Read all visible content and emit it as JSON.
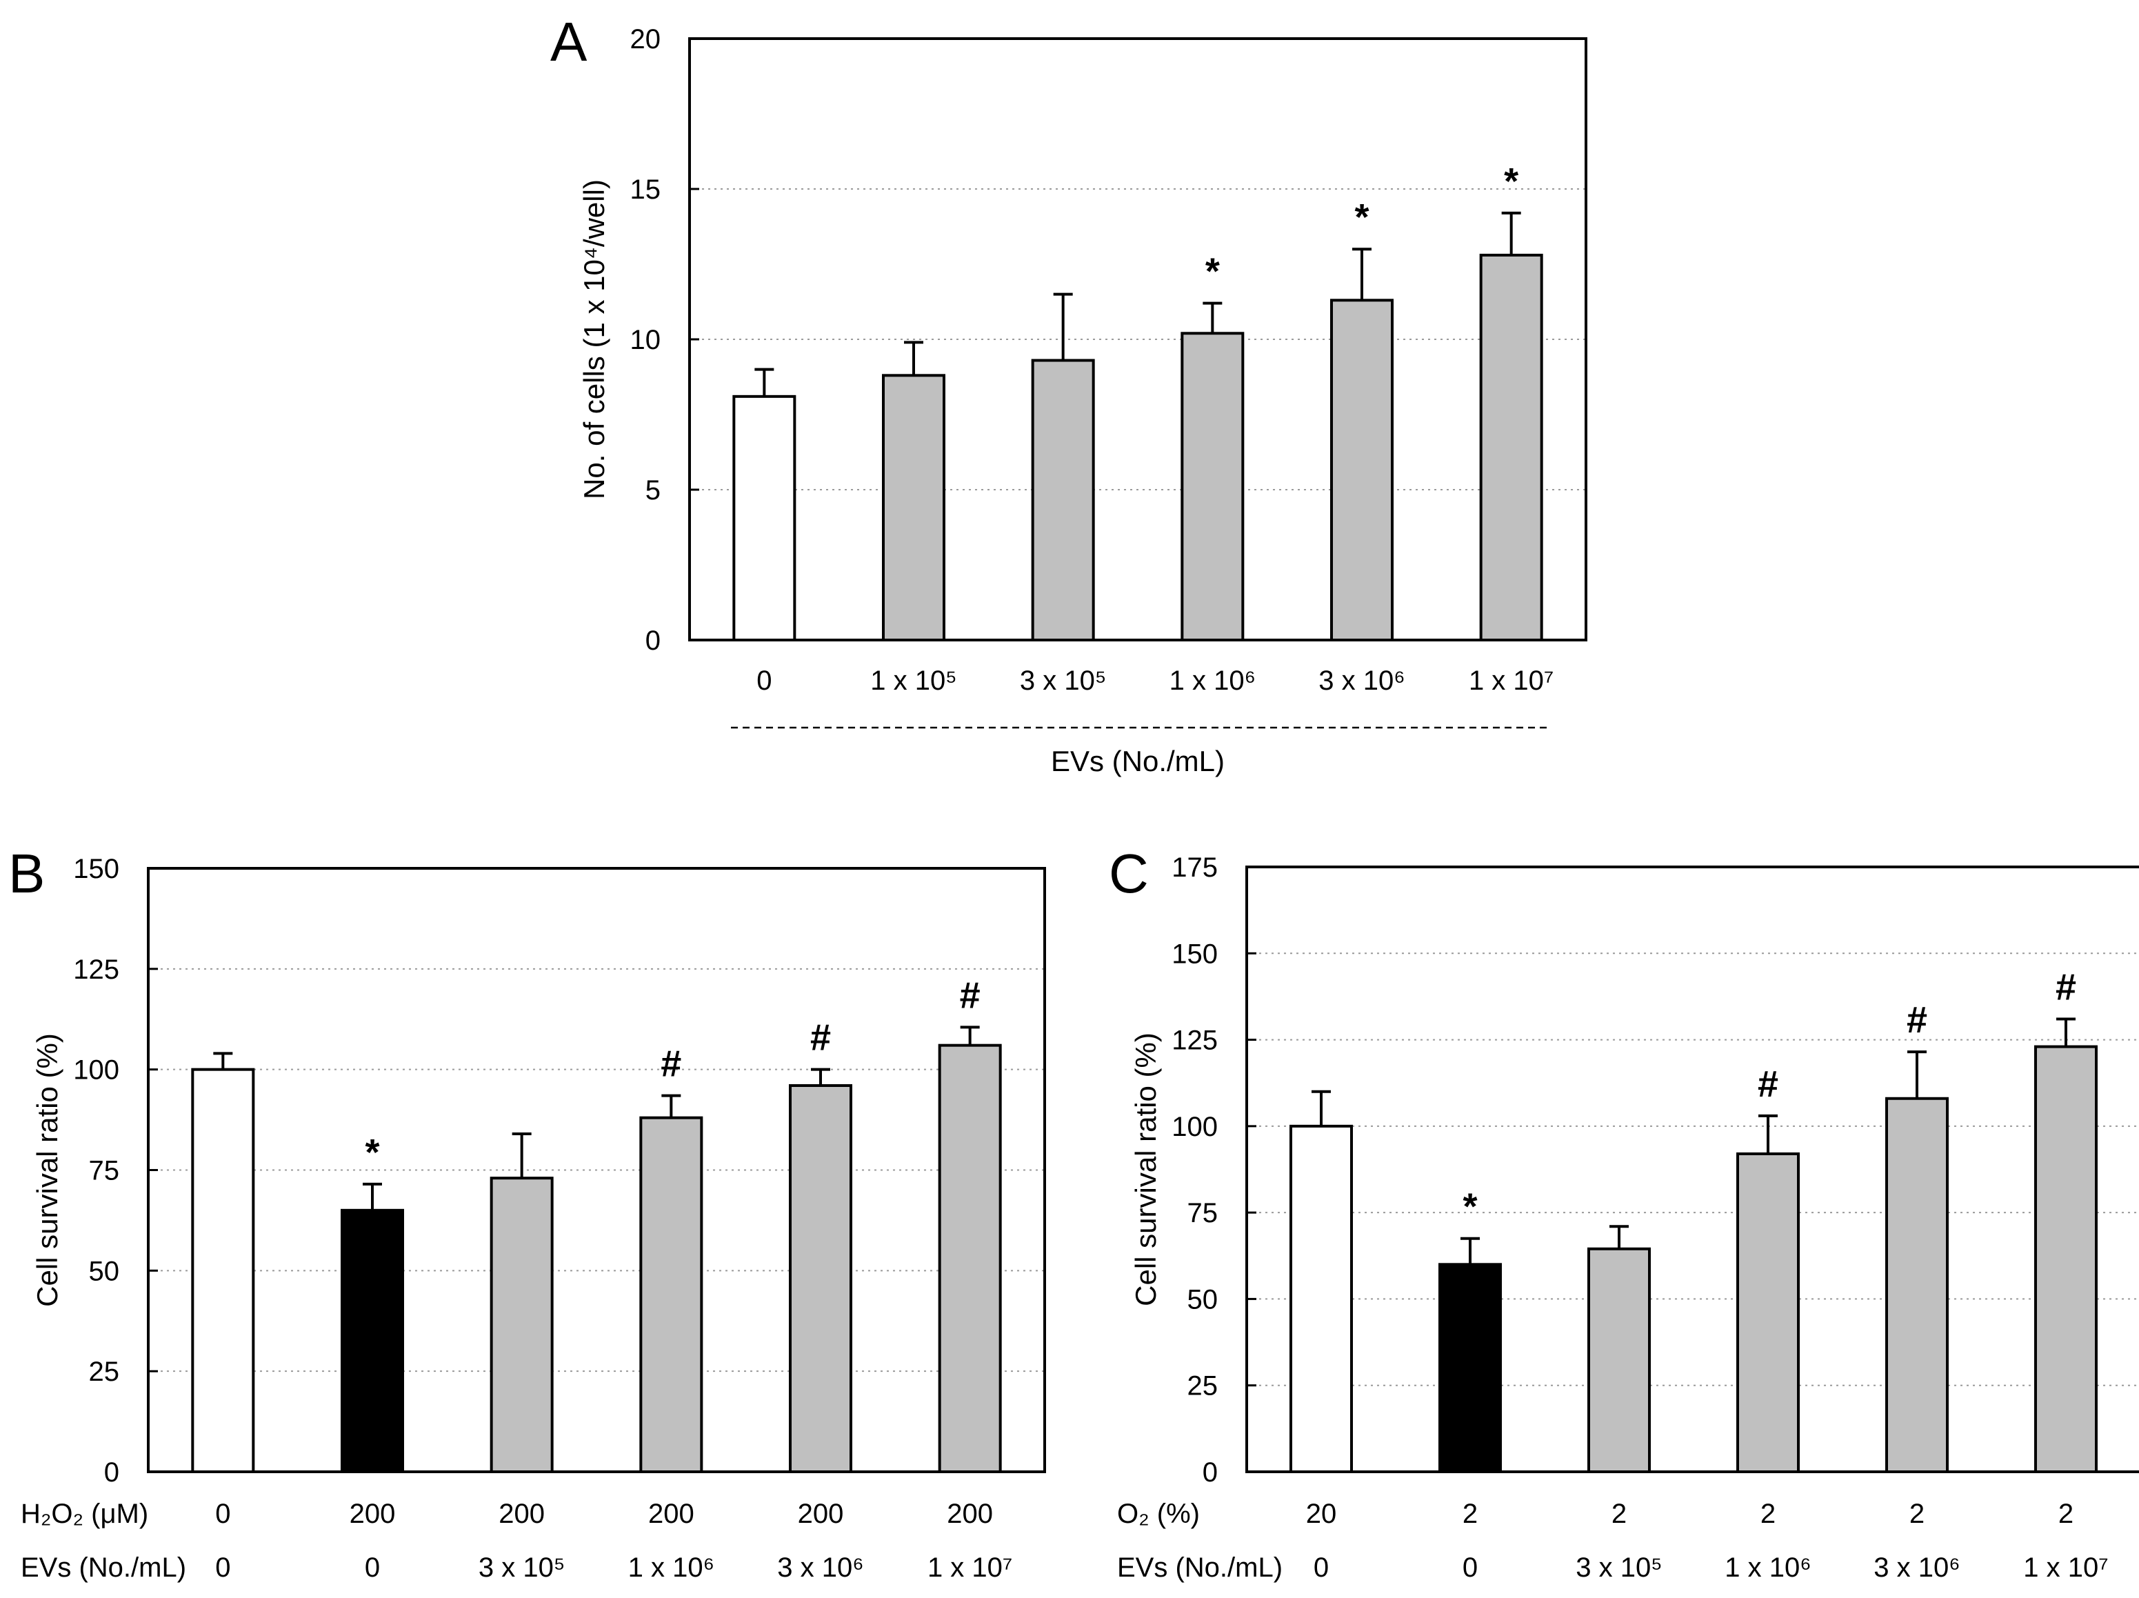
{
  "colors": {
    "control": "#ffffff",
    "stress": "#000000",
    "ev": "#c0c0c0"
  },
  "chart_data": [
    {
      "panel": "A",
      "type": "bar",
      "title": "",
      "ylabel": "No. of cells (1 x 10⁴/well)",
      "xlabel": "EVs (No./mL)",
      "ylim": [
        0,
        20
      ],
      "yticks": [
        0,
        5,
        10,
        15,
        20
      ],
      "grid": true,
      "category_rows": [
        {
          "label": "",
          "values": [
            "0",
            "1 x 10⁵",
            "3 x 10⁵",
            "1 x 10⁶",
            "3 x 10⁶",
            "1 x 10⁷"
          ]
        }
      ],
      "values": [
        8.1,
        8.8,
        9.3,
        10.2,
        11.3,
        12.8
      ],
      "errors": [
        0.9,
        1.1,
        2.2,
        1.0,
        1.7,
        1.4
      ],
      "fills": [
        "control",
        "ev",
        "ev",
        "ev",
        "ev",
        "ev"
      ],
      "significance": [
        "",
        "",
        "",
        "*",
        "*",
        "*"
      ]
    },
    {
      "panel": "B",
      "type": "bar",
      "title": "",
      "ylabel": "Cell survival ratio (%)",
      "xlabel": "",
      "ylim": [
        0,
        150
      ],
      "yticks": [
        0,
        25,
        50,
        75,
        100,
        125,
        150
      ],
      "grid": true,
      "category_rows": [
        {
          "label": "H₂O₂ (μM)",
          "values": [
            "0",
            "200",
            "200",
            "200",
            "200",
            "200"
          ]
        },
        {
          "label": "EVs (No./mL)",
          "values": [
            "0",
            "0",
            "3 x 10⁵",
            "1 x 10⁶",
            "3 x 10⁶",
            "1 x 10⁷"
          ]
        }
      ],
      "values": [
        100,
        65,
        73,
        88,
        96,
        106
      ],
      "errors": [
        4,
        6.5,
        11,
        5.5,
        4,
        4.5
      ],
      "fills": [
        "control",
        "stress",
        "ev",
        "ev",
        "ev",
        "ev"
      ],
      "significance": [
        "",
        "*",
        "",
        "#",
        "#",
        "#"
      ]
    },
    {
      "panel": "C",
      "type": "bar",
      "title": "",
      "ylabel": "Cell survival ratio (%)",
      "xlabel": "",
      "ylim": [
        0,
        175
      ],
      "yticks": [
        0,
        25,
        50,
        75,
        100,
        125,
        150,
        175
      ],
      "grid": true,
      "category_rows": [
        {
          "label": "O₂ (%)",
          "values": [
            "20",
            "2",
            "2",
            "2",
            "2",
            "2"
          ]
        },
        {
          "label": "EVs (No./mL)",
          "values": [
            "0",
            "0",
            "3 x 10⁵",
            "1 x 10⁶",
            "3 x 10⁶",
            "1 x 10⁷"
          ]
        }
      ],
      "values": [
        100,
        60,
        64.5,
        92,
        108,
        123
      ],
      "errors": [
        10,
        7.5,
        6.5,
        11,
        13.5,
        8
      ],
      "fills": [
        "control",
        "stress",
        "ev",
        "ev",
        "ev",
        "ev"
      ],
      "significance": [
        "",
        "*",
        "",
        "#",
        "#",
        "#"
      ]
    }
  ]
}
